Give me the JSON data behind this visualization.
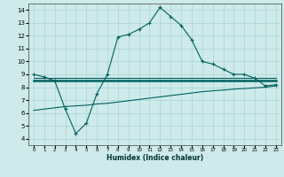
{
  "xlabel": "Humidex (Indice chaleur)",
  "background_color": "#ceeaea",
  "grid_color": "#aad4d4",
  "line_color": "#006060",
  "ylim": [
    3.5,
    14.5
  ],
  "xlim": [
    -0.5,
    23.5
  ],
  "yticks": [
    4,
    5,
    6,
    7,
    8,
    9,
    10,
    11,
    12,
    13,
    14
  ],
  "xticks": [
    0,
    1,
    2,
    3,
    4,
    5,
    6,
    7,
    8,
    9,
    10,
    11,
    12,
    13,
    14,
    15,
    16,
    17,
    18,
    19,
    20,
    21,
    22,
    23
  ],
  "line1_x": [
    0,
    1,
    2,
    3,
    4,
    5,
    6,
    7,
    8,
    9,
    10,
    11,
    12,
    13,
    14,
    15,
    16,
    17,
    18,
    19,
    20,
    21,
    22,
    23
  ],
  "line1_y": [
    9.0,
    8.8,
    8.5,
    6.3,
    4.4,
    5.2,
    7.5,
    9.0,
    11.9,
    12.1,
    12.5,
    13.0,
    14.2,
    13.5,
    12.8,
    11.7,
    10.0,
    9.8,
    9.4,
    9.0,
    9.0,
    8.7,
    8.1,
    8.2
  ],
  "line2_x": [
    0,
    23
  ],
  "line2_y": [
    8.55,
    8.55
  ],
  "line3_x": [
    0,
    23
  ],
  "line3_y": [
    8.7,
    8.7
  ],
  "line4_x": [
    0,
    1,
    2,
    3,
    4,
    5,
    6,
    7,
    8,
    9,
    10,
    11,
    12,
    13,
    14,
    15,
    16,
    17,
    18,
    19,
    20,
    21,
    22,
    23
  ],
  "line4_y": [
    6.2,
    6.3,
    6.4,
    6.5,
    6.55,
    6.6,
    6.7,
    6.75,
    6.85,
    6.95,
    7.05,
    7.15,
    7.25,
    7.35,
    7.45,
    7.55,
    7.65,
    7.72,
    7.78,
    7.85,
    7.9,
    7.95,
    8.0,
    8.1
  ]
}
